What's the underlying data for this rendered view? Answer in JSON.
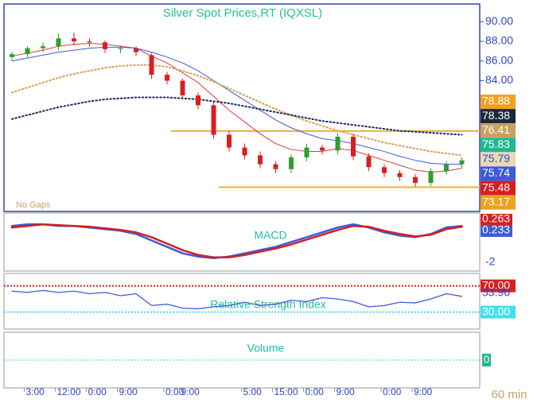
{
  "chart_data": {
    "type": "candlestick",
    "title": "Silver Spot Prices,RT (IQXSL)",
    "note": "No Gaps",
    "interval": "60 min",
    "categories": [
      null,
      "3:00",
      null,
      "12:00",
      null,
      "0:00",
      null,
      "9:00",
      null,
      null,
      "0:00",
      "9:00",
      null,
      null,
      null,
      "5:00",
      null,
      "15:00",
      null,
      "0:00",
      null,
      "9:00",
      null,
      null,
      "0:00",
      null,
      "9:00",
      null,
      null,
      null
    ],
    "open": [
      86.4,
      86.7,
      87.3,
      87.5,
      88.3,
      88.0,
      87.9,
      87.2,
      87.3,
      86.6,
      84.6,
      84.0,
      82.5,
      81.5,
      78.5,
      77.2,
      76.4,
      75.5,
      75.0,
      76.2,
      77.2,
      76.9,
      78.3,
      76.3,
      75.2,
      74.6,
      74.2,
      73.6,
      74.8,
      75.5
    ],
    "high": [
      86.9,
      87.5,
      87.9,
      88.8,
      88.9,
      88.3,
      88.1,
      87.6,
      87.5,
      86.8,
      84.9,
      84.2,
      82.8,
      81.8,
      78.9,
      77.6,
      76.8,
      75.8,
      76.5,
      77.6,
      77.5,
      78.7,
      78.6,
      76.6,
      75.5,
      74.9,
      74.5,
      75.1,
      75.8,
      76.2
    ],
    "low": [
      86.0,
      86.4,
      86.9,
      87.1,
      87.6,
      87.5,
      86.8,
      86.8,
      86.5,
      84.2,
      83.6,
      82.1,
      81.1,
      78.1,
      76.8,
      76.0,
      75.1,
      74.6,
      74.6,
      75.8,
      76.5,
      76.5,
      75.9,
      74.8,
      74.2,
      73.8,
      73.2,
      73.3,
      74.4,
      75.1
    ],
    "close": [
      86.7,
      87.3,
      87.5,
      88.3,
      88.0,
      87.9,
      87.2,
      87.3,
      86.9,
      84.6,
      84.0,
      82.5,
      81.5,
      78.5,
      77.2,
      76.4,
      75.5,
      75.0,
      76.2,
      77.2,
      76.9,
      78.3,
      76.3,
      75.2,
      74.6,
      74.2,
      73.6,
      74.8,
      75.5,
      75.9
    ],
    "up_color": "#2e9e2e",
    "down_color": "#d62020",
    "series": [
      {
        "color": "#e03a3a",
        "style": "solid",
        "values": [
          86.5,
          86.8,
          87.1,
          87.5,
          87.7,
          87.8,
          87.7,
          87.5,
          87.3,
          86.5,
          85.8,
          84.8,
          83.8,
          82.4,
          81.0,
          79.8,
          78.6,
          77.6,
          77.0,
          76.8,
          76.8,
          77.1,
          76.9,
          76.4,
          75.9,
          75.4,
          74.9,
          74.7,
          74.8,
          75.1
        ]
      },
      {
        "color": "#3b5bdb",
        "style": "solid",
        "values": [
          86.0,
          86.3,
          86.6,
          86.9,
          87.1,
          87.3,
          87.4,
          87.4,
          87.3,
          86.9,
          86.4,
          85.8,
          85.0,
          84.0,
          83.0,
          82.0,
          81.0,
          80.0,
          79.2,
          78.6,
          78.1,
          77.9,
          77.6,
          77.2,
          76.8,
          76.3,
          75.9,
          75.6,
          75.5,
          75.5
        ]
      },
      {
        "color": "#d9a050",
        "style": "dotted",
        "values": [
          82.8,
          83.3,
          83.8,
          84.3,
          84.7,
          85.0,
          85.3,
          85.5,
          85.6,
          85.6,
          85.4,
          85.0,
          84.5,
          83.9,
          83.2,
          82.5,
          81.8,
          81.1,
          80.5,
          79.9,
          79.4,
          78.9,
          78.5,
          78.1,
          77.7,
          77.4,
          77.1,
          76.8,
          76.6,
          76.4
        ]
      },
      {
        "color": "#1a2a5a",
        "style": "dotted",
        "values": [
          80.1,
          80.5,
          80.9,
          81.3,
          81.6,
          81.9,
          82.1,
          82.2,
          82.3,
          82.3,
          82.3,
          82.2,
          82.1,
          81.9,
          81.7,
          81.4,
          81.1,
          80.8,
          80.5,
          80.2,
          79.9,
          79.7,
          79.5,
          79.3,
          79.1,
          78.9,
          78.8,
          78.7,
          78.6,
          78.5
        ]
      }
    ],
    "levels": [
      78.88,
      73.17
    ],
    "level_color": "#f0b030",
    "ylim": [
      70.7,
      91.8
    ],
    "yticks": [
      {
        "value": 90,
        "label": "90.00"
      },
      {
        "value": 88,
        "label": "88.00"
      },
      {
        "value": 86,
        "label": "86.00"
      },
      {
        "value": 84,
        "label": "84.00"
      }
    ],
    "badges": [
      {
        "value": 78.88,
        "color": "#f0a020",
        "text_color": "#ffffff"
      },
      {
        "value": 78.38,
        "color": "#1a2a3a",
        "text_color": "#ffffff"
      },
      {
        "value": 76.41,
        "color": "#c8a060",
        "text_color": "#ffffff"
      },
      {
        "value": 75.83,
        "color": "#20b890",
        "text_color": "#ffffff"
      },
      {
        "value": 75.79,
        "color": "#e8d8b8",
        "text_color": "#3344cc"
      },
      {
        "value": 75.74,
        "color": "#3b5bdb",
        "text_color": "#ffffff"
      },
      {
        "value": 75.48,
        "color": "#d62020",
        "text_color": "#ffffff"
      },
      {
        "value": 73.17,
        "color": "#f0a020",
        "text_color": "#ffffff"
      }
    ],
    "macd": {
      "title": "MACD",
      "ylim": [
        -2.8,
        0.8
      ],
      "yticks": [
        -2
      ],
      "series": [
        {
          "color": "#3b5bdb",
          "values": [
            0.0,
            0.1,
            0.1,
            0.0,
            0.0,
            -0.1,
            -0.2,
            -0.3,
            -0.5,
            -0.9,
            -1.3,
            -1.7,
            -1.9,
            -2.0,
            -1.9,
            -1.7,
            -1.5,
            -1.3,
            -1.0,
            -0.7,
            -0.4,
            -0.1,
            0.1,
            -0.1,
            -0.4,
            -0.6,
            -0.7,
            -0.5,
            -0.1,
            0.0
          ]
        },
        {
          "color": "#d62020",
          "values": [
            -0.1,
            0.0,
            0.1,
            0.05,
            0.0,
            -0.05,
            -0.15,
            -0.25,
            -0.4,
            -0.7,
            -1.1,
            -1.5,
            -1.8,
            -1.95,
            -1.95,
            -1.8,
            -1.6,
            -1.4,
            -1.15,
            -0.85,
            -0.55,
            -0.25,
            0.0,
            -0.05,
            -0.3,
            -0.5,
            -0.65,
            -0.55,
            -0.2,
            -0.05
          ]
        }
      ],
      "badges": [
        {
          "value": 0.263,
          "color": "#d62020"
        },
        {
          "value": 0.233,
          "color": "#3b5bdb"
        }
      ]
    },
    "rsi": {
      "title": "Relative Strength Index",
      "ylim": [
        4,
        89
      ],
      "color": "#3b5bdb",
      "values": [
        62,
        60,
        63,
        60,
        62,
        58,
        60,
        55,
        58,
        40,
        42,
        36,
        35,
        38,
        40,
        45,
        40,
        42,
        48,
        46,
        52,
        50,
        46,
        38,
        40,
        45,
        44,
        50,
        58,
        54
      ],
      "levels": [
        {
          "value": 70,
          "label": "70.00",
          "color": "#d62020"
        },
        {
          "value": 30,
          "label": "30.00",
          "color": "#40e0f0"
        }
      ],
      "current": {
        "value": 53.96,
        "label": "53.96"
      }
    },
    "volume": {
      "title": "Volume",
      "yticks": [
        0
      ],
      "ylim": [
        -1,
        1
      ]
    }
  }
}
